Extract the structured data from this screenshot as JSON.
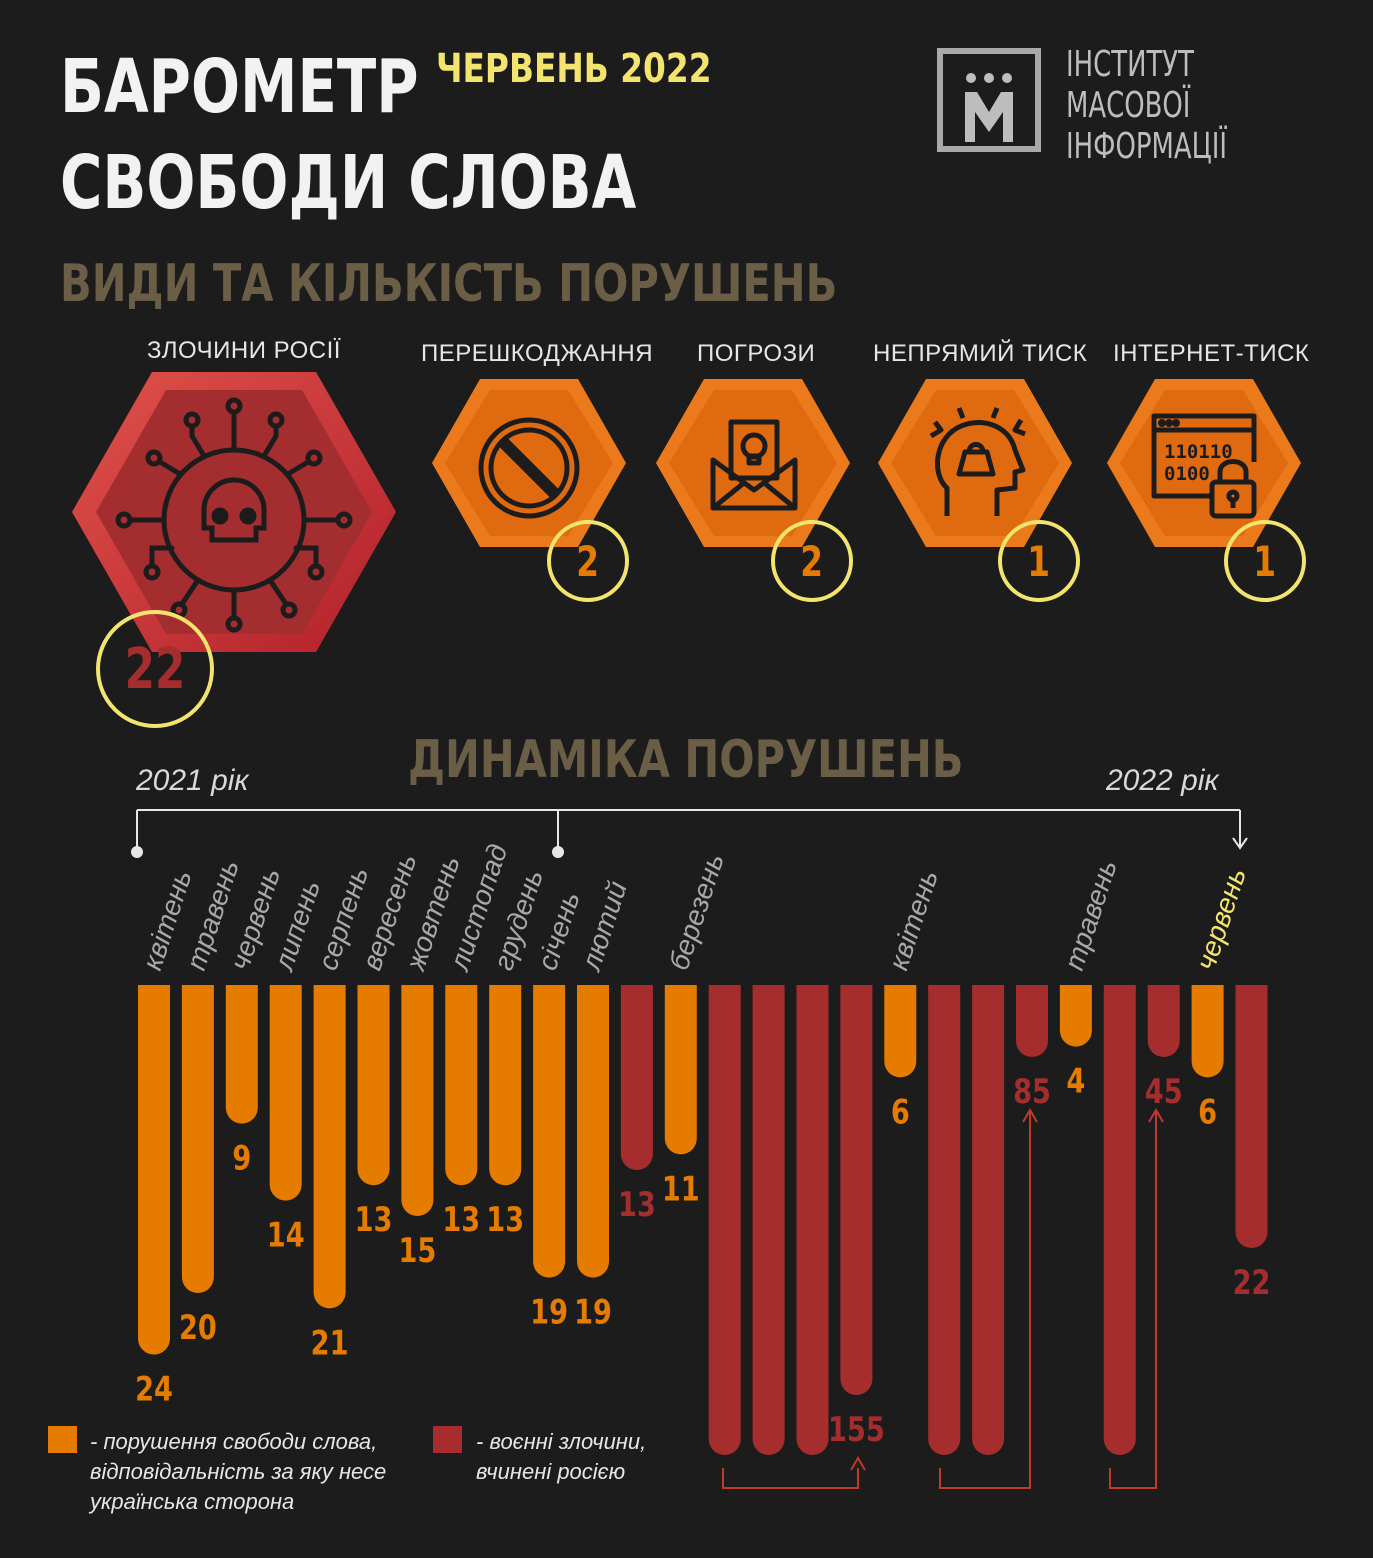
{
  "header": {
    "title_line1": "БАРОМЕТР",
    "title_line2": "СВОБОДИ СЛОВА",
    "month": "ЧЕРВЕНЬ 2022",
    "section1_title": "ВИДИ ТА КІЛЬКІСТЬ ПОРУШЕНЬ",
    "section2_title": "ДИНАМІКА ПОРУШЕНЬ"
  },
  "logo": {
    "letter": "М",
    "line1": "ІНСТИТУТ",
    "line2": "МАСОВОЇ",
    "line3": "ІНФОРМАЦІЇ"
  },
  "categories": [
    {
      "label": "ЗЛОЧИНИ РОСІЇ",
      "count": "22",
      "icon": "skull-network-icon"
    },
    {
      "label": "ПЕРЕШКОДЖАННЯ",
      "count": "2",
      "icon": "prohibited-icon"
    },
    {
      "label": "ПОГРОЗИ",
      "count": "2",
      "icon": "threat-envelope-icon"
    },
    {
      "label": "НЕПРЯМИЙ ТИСК",
      "count": "1",
      "icon": "head-pressure-icon"
    },
    {
      "label": "ІНТЕРНЕТ-ТИСК",
      "count": "1",
      "icon": "binary-lock-icon"
    }
  ],
  "colors": {
    "free_speech": "#e57c00",
    "war_crimes": "#a52d2e",
    "accent": "#f3e46e",
    "background": "#1d1c1d",
    "muted_title": "#6b5e46"
  },
  "timeline": {
    "start_label": "2021 рік",
    "end_label": "2022 рік"
  },
  "chart_data": {
    "type": "bar",
    "title": "ДИНАМІКА ПОРУШЕНЬ",
    "orientation": "downward",
    "bars": [
      {
        "category": "квітень",
        "value": 24,
        "series": "free_speech",
        "value_label": "24"
      },
      {
        "category": "травень",
        "value": 20,
        "series": "free_speech",
        "value_label": "20"
      },
      {
        "category": "червень",
        "value": 9,
        "series": "free_speech",
        "value_label": "9"
      },
      {
        "category": "липень",
        "value": 14,
        "series": "free_speech",
        "value_label": "14"
      },
      {
        "category": "серпень",
        "value": 21,
        "series": "free_speech",
        "value_label": "21"
      },
      {
        "category": "вересень",
        "value": 13,
        "series": "free_speech",
        "value_label": "13"
      },
      {
        "category": "жовтень",
        "value": 15,
        "series": "free_speech",
        "value_label": "15"
      },
      {
        "category": "листопад",
        "value": 13,
        "series": "free_speech",
        "value_label": "13"
      },
      {
        "category": "грудень",
        "value": 13,
        "series": "free_speech",
        "value_label": "13"
      },
      {
        "category": "січень",
        "value": 19,
        "series": "free_speech",
        "value_label": "19"
      },
      {
        "category": "лютий",
        "value": 19,
        "series": "free_speech",
        "value_label": "19"
      },
      {
        "category": "лютий",
        "value": 13,
        "series": "war_crimes",
        "value_label": "13"
      },
      {
        "category": "березень",
        "value": 11,
        "series": "free_speech",
        "value_label": "11"
      },
      {
        "category": "березень",
        "value": 155,
        "series": "war_crimes",
        "value_label": ""
      },
      {
        "category": "березень",
        "value": 155,
        "series": "war_crimes",
        "value_label": ""
      },
      {
        "category": "березень",
        "value": 155,
        "series": "war_crimes",
        "value_label": ""
      },
      {
        "category": "березень",
        "value": 155,
        "series": "war_crimes",
        "value_label": "155"
      },
      {
        "category": "квітень",
        "value": 6,
        "series": "free_speech",
        "value_label": "6"
      },
      {
        "category": "квітень",
        "value": 85,
        "series": "war_crimes",
        "value_label": ""
      },
      {
        "category": "квітень",
        "value": 85,
        "series": "war_crimes",
        "value_label": ""
      },
      {
        "category": "квітень",
        "value": 85,
        "series": "war_crimes",
        "value_label": "85"
      },
      {
        "category": "травень",
        "value": 4,
        "series": "free_speech",
        "value_label": "4"
      },
      {
        "category": "травень",
        "value": 45,
        "series": "war_crimes",
        "value_label": ""
      },
      {
        "category": "травень",
        "value": 45,
        "series": "war_crimes",
        "value_label": "45"
      },
      {
        "category": "червень",
        "value": 6,
        "series": "free_speech",
        "value_label": "6"
      },
      {
        "category": "червень",
        "value": 22,
        "series": "war_crimes",
        "value_label": "22"
      }
    ],
    "month_labels": [
      {
        "text": "квітень",
        "bar": 0,
        "highlight": false
      },
      {
        "text": "травень",
        "bar": 1,
        "highlight": false
      },
      {
        "text": "червень",
        "bar": 2,
        "highlight": false
      },
      {
        "text": "липень",
        "bar": 3,
        "highlight": false
      },
      {
        "text": "серпень",
        "bar": 4,
        "highlight": false
      },
      {
        "text": "вересень",
        "bar": 5,
        "highlight": false
      },
      {
        "text": "жовтень",
        "bar": 6,
        "highlight": false
      },
      {
        "text": "листопад",
        "bar": 7,
        "highlight": false
      },
      {
        "text": "грудень",
        "bar": 8,
        "highlight": false
      },
      {
        "text": "січень",
        "bar": 9,
        "highlight": false
      },
      {
        "text": "лютий",
        "bar": 10,
        "highlight": false
      },
      {
        "text": "березень",
        "bar": 12,
        "highlight": false
      },
      {
        "text": "квітень",
        "bar": 17,
        "highlight": false
      },
      {
        "text": "травень",
        "bar": 21,
        "highlight": false
      },
      {
        "text": "червень",
        "bar": 24,
        "highlight": true
      }
    ],
    "legend": [
      {
        "series": "free_speech",
        "text": "- порушення свободи слова, відповідальність за яку несе українська сторона"
      },
      {
        "series": "war_crimes",
        "text": "- воєнні злочини, вчинені росією"
      }
    ]
  }
}
